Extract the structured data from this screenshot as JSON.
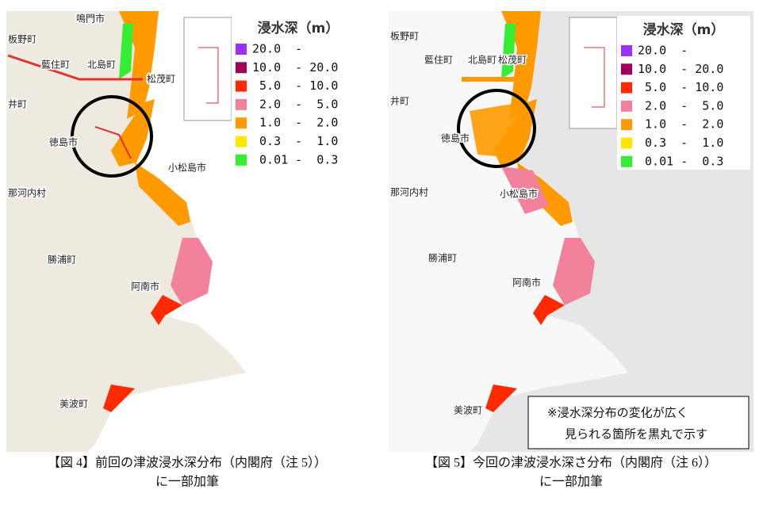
{
  "legend": {
    "title": "浸水深（m）",
    "items": [
      {
        "label": "20.0  -",
        "color": "#9b30ff"
      },
      {
        "label": "10.0  - 20.0",
        "color": "#a0005a"
      },
      {
        "label": " 5.0  - 10.0",
        "color": "#ff2a00"
      },
      {
        "label": " 2.0  -  5.0",
        "color": "#f2829c"
      },
      {
        "label": " 1.0  -  2.0",
        "color": "#ff9a00"
      },
      {
        "label": " 0.3  -  1.0",
        "color": "#ffe600"
      },
      {
        "label": " 0.01 -  0.3",
        "color": "#33ee33"
      }
    ]
  },
  "left_map": {
    "places": [
      "鳴門市",
      "板野町",
      "藍住町",
      "北島町",
      "松茂町",
      "井町",
      "徳島市",
      "小松島市",
      "那河内村",
      "勝浦町",
      "阿南市",
      "美波町"
    ],
    "caption": [
      "【図 4】前回の津波浸水深分布（内閣府（注 5））",
      "に一部加筆"
    ]
  },
  "right_map": {
    "places": [
      "板野町",
      "藍住町",
      "北島町",
      "松茂町",
      "井町",
      "徳島市",
      "那河内村",
      "小松島市",
      "勝浦町",
      "阿南市",
      "美波町"
    ],
    "note": [
      "※浸水深分布の変化が広く",
      "見られる箇所を黒丸で示す"
    ],
    "caption": [
      "【図 5】今回の津波浸水深さ分布（内閣府（注 6））",
      "に一部加筆"
    ]
  }
}
